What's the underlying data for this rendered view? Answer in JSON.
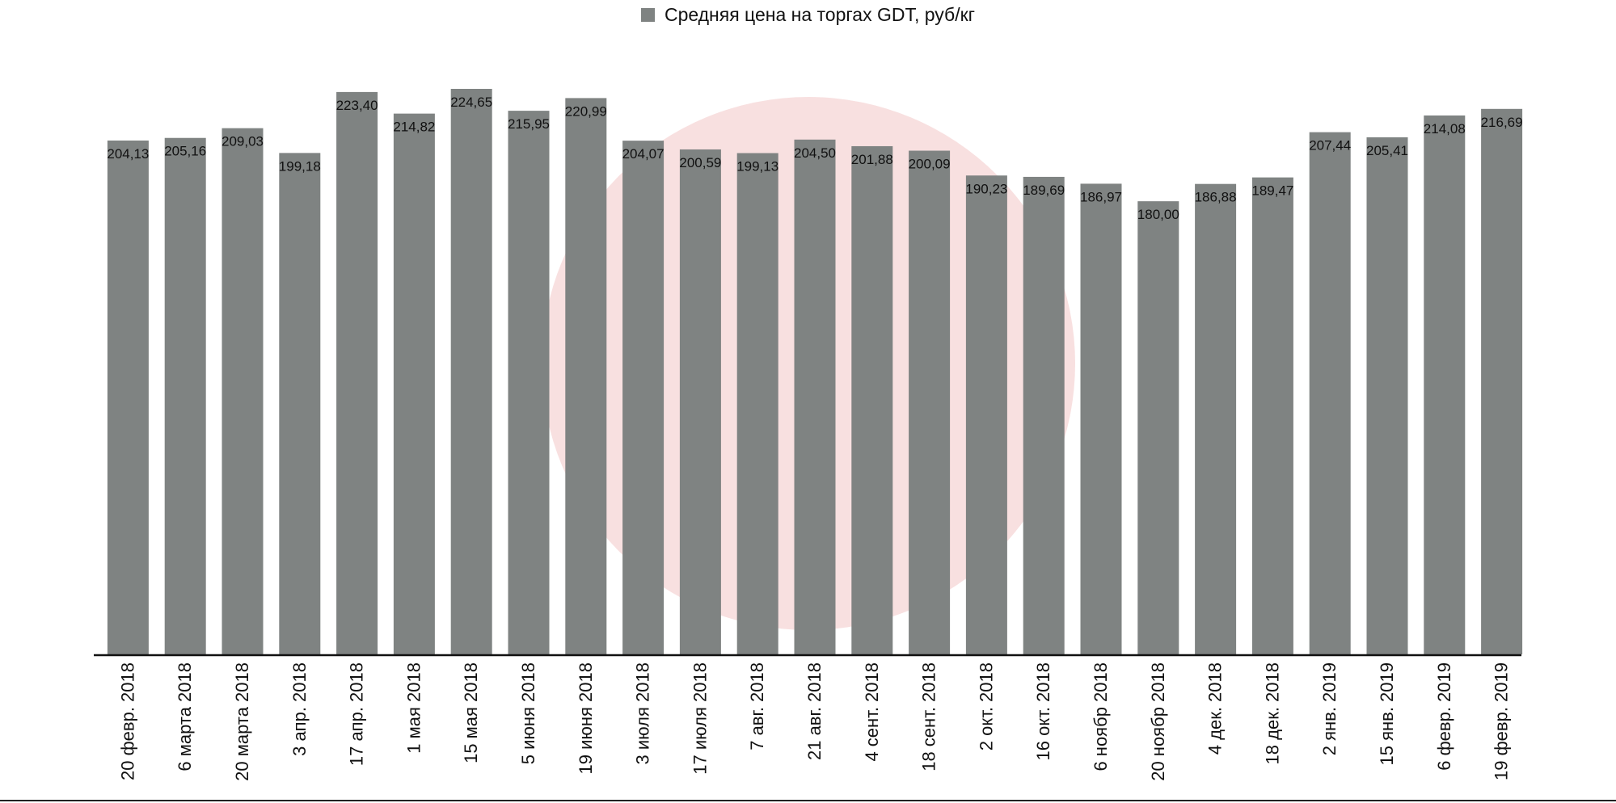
{
  "chart_data": {
    "type": "bar",
    "title": "",
    "xlabel": "",
    "ylabel": "",
    "legend": {
      "placement": "top-center",
      "entries": [
        "Средняя цена на торгах GDT, руб/кг"
      ]
    },
    "grid": false,
    "ylim": [
      0,
      240
    ],
    "colors": {
      "bar": "#7f8382",
      "axis": "#111111",
      "watermark": "#f3c6c6"
    },
    "categories": [
      "20 февр. 2018",
      "6 марта 2018",
      "20 марта 2018",
      "3 апр. 2018",
      "17 апр. 2018",
      "1 мая 2018",
      "15 мая 2018",
      "5 июня 2018",
      "19 июня 2018",
      "3 июля 2018",
      "17 июля 2018",
      "7 авг. 2018",
      "21 авг. 2018",
      "4 сент. 2018",
      "18 сент. 2018",
      "2 окт. 2018",
      "16 окт. 2018",
      "6  ноябр 2018",
      "20 ноябр  2018",
      "4 дек. 2018",
      "18 дек. 2018",
      "2 янв. 2019",
      "15 янв. 2019",
      "6 февр. 2019",
      "19 февр. 2019"
    ],
    "series": [
      {
        "name": "Средняя цена на торгах GDT, руб/кг",
        "values": [
          204.13,
          205.16,
          209.03,
          199.18,
          223.4,
          214.82,
          224.65,
          215.95,
          220.99,
          204.07,
          200.59,
          199.13,
          204.5,
          201.88,
          200.09,
          190.23,
          189.69,
          186.97,
          180.0,
          186.88,
          189.47,
          207.44,
          205.41,
          214.08,
          216.69
        ],
        "labels": [
          "204,13",
          "205,16",
          "209,03",
          "199,18",
          "223,40",
          "214,82",
          "224,65",
          "215,95",
          "220,99",
          "204,07",
          "200,59",
          "199,13",
          "204,50",
          "201,88",
          "200,09",
          "190,23",
          "189,69",
          "186,97",
          "180,00",
          "186,88",
          "189,47",
          "207,44",
          "205,41",
          "214,08",
          "216,69"
        ]
      }
    ]
  }
}
